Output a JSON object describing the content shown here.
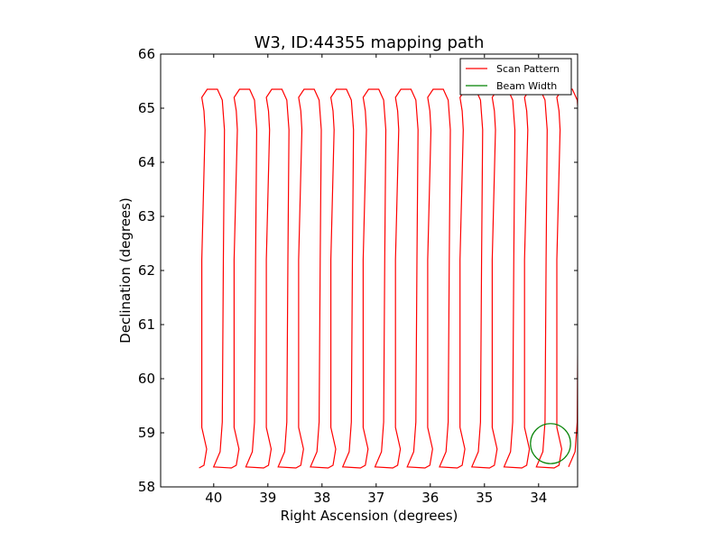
{
  "chart_data": {
    "type": "line",
    "title": "W3, ID:44355 mapping path",
    "xlabel": "Right Ascension (degrees)",
    "ylabel": "Declination (degrees)",
    "xlim": [
      40.98,
      33.28
    ],
    "ylim": [
      58,
      66
    ],
    "x_inverted": true,
    "xticks": [
      40,
      39,
      38,
      37,
      36,
      35,
      34
    ],
    "yticks": [
      58,
      59,
      60,
      61,
      62,
      63,
      64,
      65,
      66
    ],
    "grid": false,
    "legend_position": "top-right",
    "scan_ra_start": 40.2,
    "scan_ra_step": -0.298,
    "scan_legs": 24,
    "scan_dec_bottom": 58.35,
    "scan_dec_top": 65.35,
    "series": [
      {
        "name": "Scan Pattern",
        "color": "#ff0000",
        "style": "scan"
      },
      {
        "name": "Beam Width",
        "color": "#008000",
        "style": "circle",
        "center": [
          33.78,
          58.8
        ],
        "radius_deg": 0.37
      }
    ]
  }
}
